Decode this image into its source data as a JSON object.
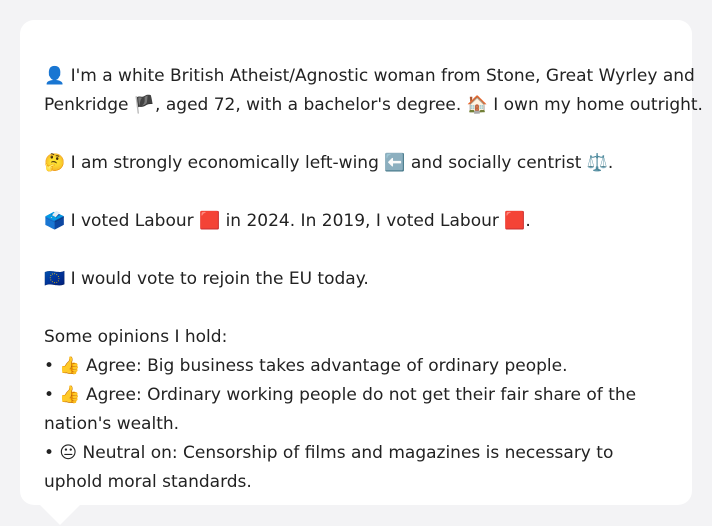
{
  "profile": {
    "intro_line1": "👤 I'm a white British Atheist/Agnostic woman from Stone, Great Wyrley and",
    "intro_line2": "Penkridge 🏴, aged 72, with a bachelor's degree. 🏠 I own my home outright.",
    "economics": "🤔 I am strongly economically left-wing ⬅️ and socially centrist ⚖️.",
    "voting": "🗳️ I voted Labour 🟥 in 2024. In 2019, I voted Labour 🟥.",
    "eu": "🇪🇺 I would vote to rejoin the EU today."
  },
  "opinions": {
    "heading": "Some opinions I hold:",
    "items": [
      "• 👍 Agree: Big business takes advantage of ordinary people.",
      "• 👍 Agree: Ordinary working people do not get their fair share of the nation's wealth.",
      "• 😐 Neutral on: Censorship of films and magazines is necessary to uphold moral standards."
    ]
  }
}
